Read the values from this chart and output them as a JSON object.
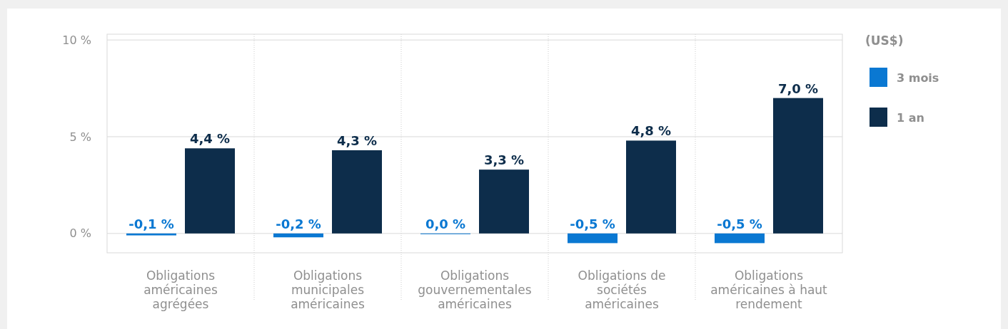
{
  "chart_data": {
    "type": "bar",
    "legend_title": "(US$)",
    "categories": [
      "Obligations américaines agrégées",
      "Obligations municipales américaines",
      "Obligations gouvernementales américaines",
      "Obligations de sociétés américaines",
      "Obligations américaines à haut rendement"
    ],
    "series": [
      {
        "name": "3 mois",
        "color": "#0a78d2",
        "values": [
          -0.1,
          -0.2,
          0.0,
          -0.5,
          -0.5
        ],
        "value_labels": [
          "-0,1 %",
          "-0,2 %",
          "0,0 %",
          "-0,5 %",
          "-0,5 %"
        ]
      },
      {
        "name": "1 an",
        "color": "#0d2d4b",
        "values": [
          4.4,
          4.3,
          3.3,
          4.8,
          7.0
        ],
        "value_labels": [
          "4,4 %",
          "4,3 %",
          "3,3 %",
          "4,8 %",
          "7,0 %"
        ]
      }
    ],
    "ylim": [
      -1,
      10.3
    ],
    "yticks": [
      {
        "value": 0,
        "label": "0 %"
      },
      {
        "value": 5,
        "label": "5 %"
      },
      {
        "value": 10,
        "label": "10 %"
      }
    ],
    "grid": true,
    "legend": "top right"
  }
}
